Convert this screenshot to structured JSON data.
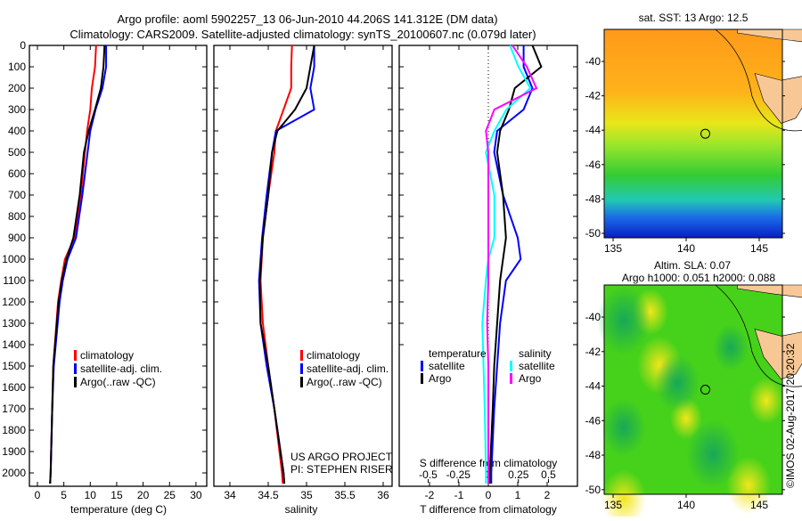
{
  "title": {
    "line1": "Argo profile: aoml 5902257_13 06-Jun-2010 44.206S 141.312E (DM data)",
    "line2": "Climatology: CARS2009. Satellite-adjusted climatology: synTS_20100607.nc (0.079d later)"
  },
  "colors": {
    "climatology": "#ff0000",
    "satellite": "#0000ff",
    "argo": "#000000",
    "s_satellite": "#00ffff",
    "s_argo": "#ff00ff"
  },
  "chart_data": [
    {
      "type": "line",
      "name": "temperature-profile",
      "xlabel": "temperature (deg C)",
      "ylabel": "depth",
      "xlim": [
        -2,
        31
      ],
      "ylim": [
        2050,
        0
      ],
      "xticks": [
        "0",
        "5",
        "10",
        "15",
        "20",
        "25",
        "30"
      ],
      "yticks": [
        "0",
        "100",
        "200",
        "300",
        "400",
        "500",
        "600",
        "700",
        "800",
        "900",
        "1000",
        "1100",
        "1200",
        "1300",
        "1400",
        "1500",
        "1600",
        "1700",
        "1800",
        "1900",
        "2000"
      ],
      "depth": [
        0,
        100,
        200,
        300,
        400,
        500,
        700,
        900,
        1000,
        1100,
        1200,
        1500,
        1700,
        2000,
        2050
      ],
      "series": [
        {
          "name": "climatology",
          "color": "#ff0000",
          "values": [
            11.1,
            10.9,
            10.3,
            10.0,
            9.4,
            9.0,
            8.2,
            7.0,
            5.2,
            4.5,
            3.9,
            3.0,
            2.8,
            2.5,
            2.4
          ]
        },
        {
          "name": "satellite-adj. clim.",
          "color": "#0000ff",
          "values": [
            13.0,
            13.0,
            12.3,
            11.0,
            10.0,
            9.5,
            8.5,
            7.3,
            5.7,
            4.8,
            4.2,
            3.1,
            2.8,
            2.5,
            2.4
          ]
        },
        {
          "name": "Argo(..raw -QC)",
          "color": "#000000",
          "values": [
            12.7,
            12.5,
            12.0,
            10.9,
            9.7,
            8.8,
            8.0,
            6.8,
            5.5,
            4.6,
            4.0,
            3.0,
            2.8,
            2.5,
            2.4
          ]
        }
      ],
      "legend": [
        "climatology",
        "satellite-adj. clim.",
        "Argo(..raw -QC)"
      ]
    },
    {
      "type": "line",
      "name": "salinity-profile",
      "xlabel": "salinity",
      "xlim": [
        33.8,
        36.1
      ],
      "ylim": [
        2050,
        0
      ],
      "xticks": [
        "34",
        "34.5",
        "35",
        "35.5",
        "36"
      ],
      "depth": [
        0,
        100,
        200,
        300,
        400,
        500,
        700,
        900,
        1100,
        1300,
        1500,
        1700,
        2000,
        2050
      ],
      "series": [
        {
          "name": "climatology",
          "color": "#ff0000",
          "values": [
            34.81,
            34.8,
            34.8,
            34.7,
            34.6,
            34.58,
            34.5,
            34.43,
            34.4,
            34.43,
            34.5,
            34.58,
            34.68,
            34.69
          ]
        },
        {
          "name": "satellite-adj. clim.",
          "color": "#0000ff",
          "values": [
            35.1,
            35.1,
            35.05,
            35.1,
            34.6,
            34.55,
            34.48,
            34.42,
            34.38,
            34.4,
            34.48,
            34.58,
            34.7,
            34.71
          ]
        },
        {
          "name": "Argo(..raw -QC)",
          "color": "#000000",
          "values": [
            35.1,
            35.05,
            35.0,
            34.85,
            34.62,
            34.55,
            34.5,
            34.43,
            34.39,
            34.4,
            34.5,
            34.58,
            34.7,
            34.71
          ]
        }
      ],
      "legend": [
        "climatology",
        "satellite-adj. clim.",
        "Argo(..raw -QC)"
      ],
      "annotation": [
        "US ARGO PROJECT",
        "PI: STEPHEN RISER"
      ]
    },
    {
      "type": "line",
      "name": "difference-profile",
      "xlabel": "T difference from climatology",
      "xlabel_top": "S difference from climatology",
      "xlim": [
        -3,
        3
      ],
      "ylim": [
        2050,
        0
      ],
      "xticks": [
        "-2",
        "-1",
        "0",
        "1",
        "2"
      ],
      "xticks_s": [
        "-0.5",
        "-0.25",
        "0",
        "0.25",
        "0.5"
      ],
      "depth": [
        0,
        100,
        200,
        300,
        400,
        500,
        700,
        900,
        1000,
        1100,
        1300,
        1500,
        1700,
        2000,
        2050
      ],
      "series": [
        {
          "name": "temperature satellite",
          "axis": "T",
          "color": "#0000ff",
          "values": [
            1.2,
            1.2,
            1.5,
            1.2,
            0.3,
            0.2,
            0.5,
            1.0,
            1.1,
            0.6,
            0.4,
            0.3,
            0.2,
            0.1,
            0.1
          ]
        },
        {
          "name": "temperature Argo",
          "axis": "T",
          "color": "#000000",
          "values": [
            1.5,
            1.8,
            0.9,
            0.7,
            0.4,
            0.3,
            0.5,
            0.6,
            0.5,
            0.4,
            0.3,
            0.2,
            0.15,
            0.05,
            0.05
          ]
        },
        {
          "name": "salinity satellite",
          "axis": "S",
          "color": "#00ffff",
          "values": [
            0.18,
            0.25,
            0.35,
            0.15,
            0.05,
            -0.02,
            0.05,
            0.05,
            0,
            -0.02,
            -0.05,
            -0.04,
            -0.03,
            -0.02,
            -0.02
          ]
        },
        {
          "name": "salinity Argo",
          "axis": "S",
          "color": "#ff00ff",
          "values": [
            0.2,
            0.32,
            0.4,
            0.05,
            -0.02,
            0,
            0,
            0,
            0,
            0,
            -0.01,
            0,
            0,
            0,
            0
          ]
        }
      ],
      "legend": {
        "t_head": "temperature",
        "s_head": "salinity",
        "sat": "satellite",
        "argo": "Argo"
      }
    },
    {
      "type": "heatmap",
      "name": "sst-map",
      "title": "sat. SST: 13 Argo: 12.5",
      "lon_ticks": [
        "135",
        "140",
        "145"
      ],
      "lat_ticks": [
        "-40",
        "-42",
        "-44",
        "-46",
        "-48",
        "-50"
      ],
      "argo_position": {
        "lon": 141.312,
        "lat": -44.206
      }
    },
    {
      "type": "heatmap",
      "name": "sla-map",
      "title_line1": "Altim. SLA: 0.07",
      "title_line2": "Argo h1000: 0.051 h2000: 0.088",
      "lon_ticks": [
        "135",
        "140",
        "145"
      ],
      "lat_ticks": [
        "-40",
        "-42",
        "-44",
        "-46",
        "-48",
        "-50"
      ],
      "argo_position": {
        "lon": 141.312,
        "lat": -44.206
      }
    }
  ],
  "watermark": "©IMOS 02-Aug-2017 20:20:32"
}
